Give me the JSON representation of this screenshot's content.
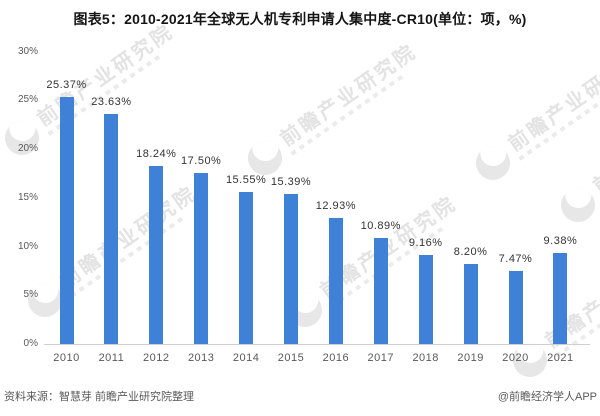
{
  "chart_data": {
    "type": "bar",
    "title": "图表5：2010-2021年全球无人机专利申请人集中度-CR10(单位：项，%)",
    "categories": [
      "2010",
      "2011",
      "2012",
      "2013",
      "2014",
      "2015",
      "2016",
      "2017",
      "2018",
      "2019",
      "2020",
      "2021"
    ],
    "values": [
      25.37,
      23.63,
      18.24,
      17.5,
      15.55,
      15.39,
      12.93,
      10.89,
      9.16,
      8.2,
      7.47,
      9.38
    ],
    "value_labels": [
      "25.37%",
      "23.63%",
      "18.24%",
      "17.50%",
      "15.55%",
      "15.39%",
      "12.93%",
      "10.89%",
      "9.16%",
      "8.20%",
      "7.47%",
      "9.38%"
    ],
    "xlabel": "",
    "ylabel": "",
    "ylim": [
      0,
      30
    ],
    "y_ticks": [
      "0%",
      "5%",
      "10%",
      "15%",
      "20%",
      "25%",
      "30%"
    ],
    "grid": false,
    "legend": "none",
    "bar_color": "#4081D8"
  },
  "colors": {
    "bar": "#4081D8",
    "axis_line": "#cfcfcf",
    "tick_text": "#595959",
    "watermark": "#e3e3e3"
  },
  "watermark": {
    "brand_text": "前瞻产业研究院"
  },
  "footer": {
    "source": "资料来源：智慧芽 前瞻产业研究院整理",
    "credit": "@前瞻经济学人APP"
  }
}
